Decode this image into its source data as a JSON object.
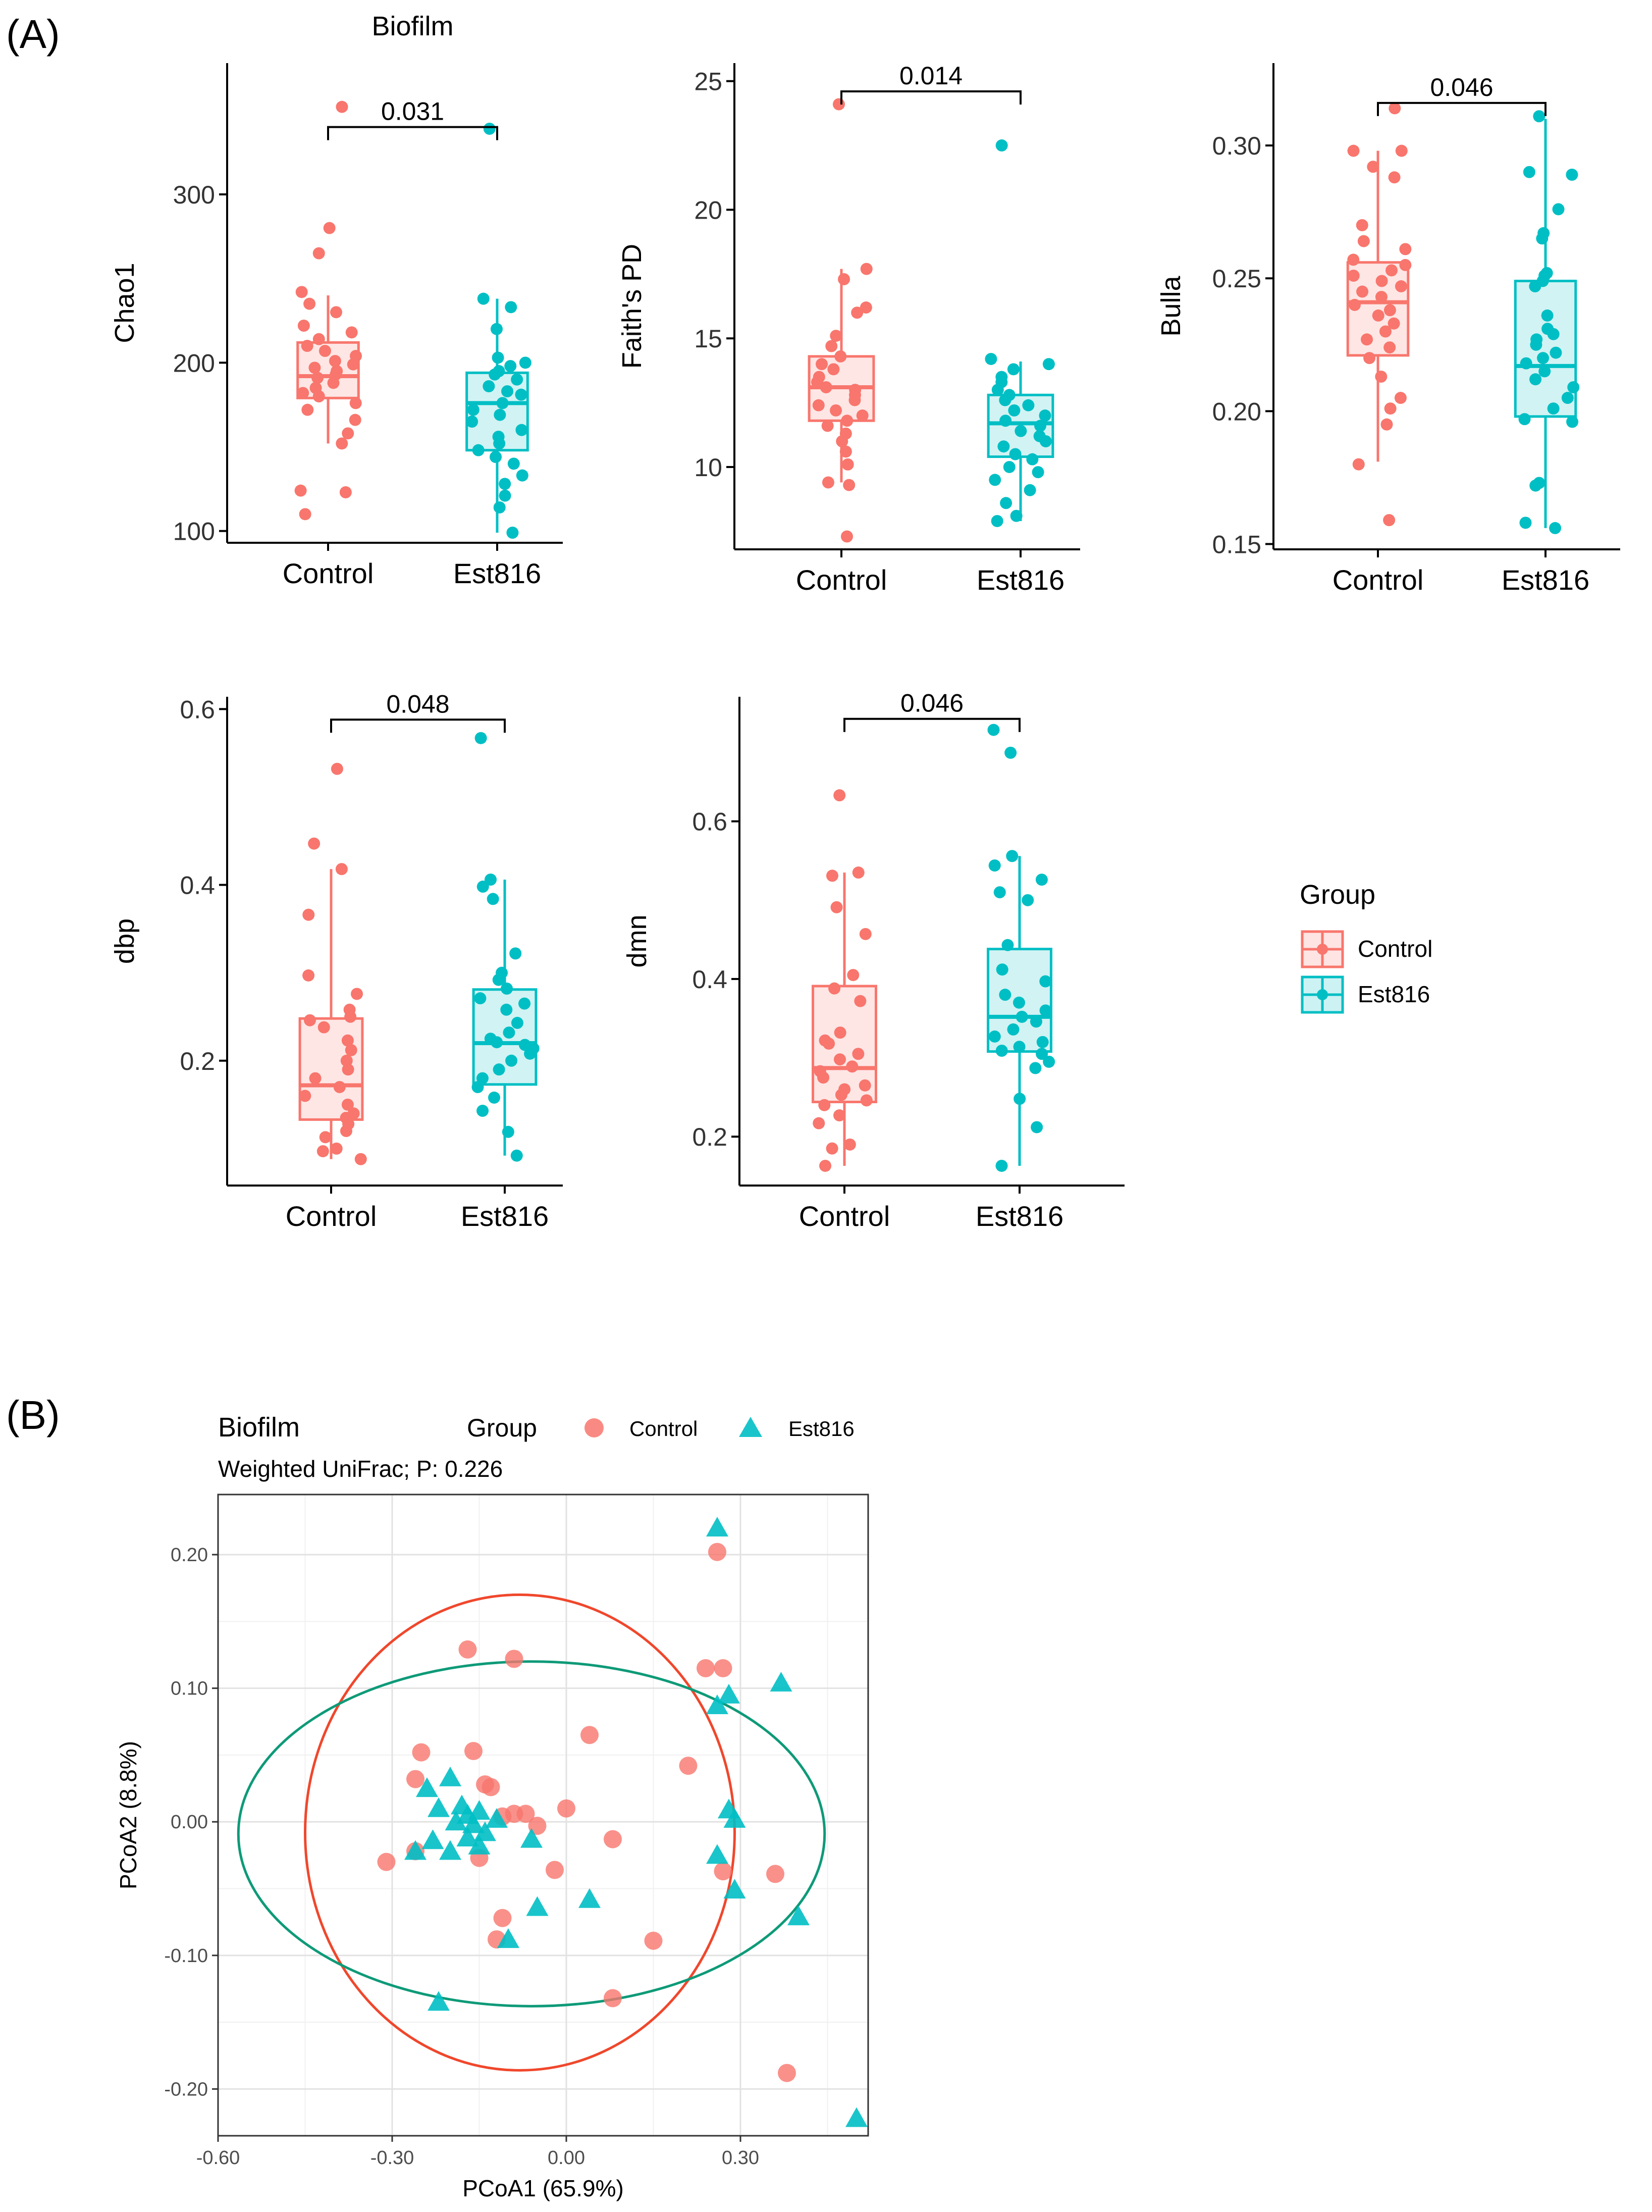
{
  "panel_labels": {
    "a": "(A)",
    "b": "(B)"
  },
  "legend": {
    "title": "Group",
    "entries": [
      {
        "label": "Control",
        "color": "#F8766D"
      },
      {
        "label": "Est816",
        "color": "#00BFC4"
      }
    ]
  },
  "chart_data": [
    {
      "type": "box",
      "title": "Biofilm",
      "ylabel": "Chao1",
      "categories": [
        "Control",
        "Est816"
      ],
      "ylim": [
        93,
        378
      ],
      "yticks": [
        100,
        200,
        300
      ],
      "ytick_labels": [
        "100",
        "200",
        "300"
      ],
      "pvalue": "0.031",
      "bracket_y": 340,
      "series": [
        {
          "name": "Control",
          "q1": 179,
          "median": 192,
          "q3": 212,
          "whisker_low": 152,
          "whisker_high": 240,
          "points": [
            352,
            280,
            265,
            242,
            235,
            230,
            222,
            218,
            214,
            210,
            207,
            204,
            201,
            199,
            197,
            195,
            193,
            191,
            188,
            185,
            182,
            180,
            176,
            172,
            166,
            158,
            152,
            124,
            123,
            110
          ]
        },
        {
          "name": "Est816",
          "q1": 148,
          "median": 176,
          "q3": 194,
          "whisker_low": 99,
          "whisker_high": 238,
          "points": [
            339,
            238,
            233,
            220,
            203,
            200,
            198,
            195,
            193,
            190,
            186,
            183,
            181,
            176,
            172,
            169,
            165,
            160,
            156,
            152,
            148,
            144,
            140,
            133,
            128,
            121,
            114,
            99
          ]
        }
      ]
    },
    {
      "type": "box",
      "title": "",
      "ylabel": "Faith's PD",
      "categories": [
        "Control",
        "Est816"
      ],
      "ylim": [
        6.8,
        25.7
      ],
      "yticks": [
        10,
        15,
        20,
        25
      ],
      "ytick_labels": [
        "10",
        "15",
        "20",
        "25"
      ],
      "pvalue": "0.014",
      "bracket_y": 24.6,
      "series": [
        {
          "name": "Control",
          "q1": 11.8,
          "median": 13.1,
          "q3": 14.3,
          "whisker_low": 9.4,
          "whisker_high": 17.7,
          "points": [
            24.1,
            17.7,
            17.3,
            16.2,
            16.0,
            15.1,
            14.7,
            14.3,
            14.0,
            13.8,
            13.5,
            13.3,
            13.1,
            13.0,
            12.8,
            12.6,
            12.4,
            12.2,
            12.0,
            11.8,
            11.6,
            11.3,
            11.0,
            10.6,
            10.1,
            9.4,
            9.3,
            7.3
          ]
        },
        {
          "name": "Est816",
          "q1": 10.4,
          "median": 11.7,
          "q3": 12.8,
          "whisker_low": 7.9,
          "whisker_high": 14.1,
          "points": [
            22.5,
            14.2,
            14.0,
            13.8,
            13.5,
            13.3,
            13.0,
            12.8,
            12.6,
            12.4,
            12.2,
            12.0,
            11.8,
            11.6,
            11.4,
            11.2,
            11.0,
            10.8,
            10.5,
            10.3,
            10.0,
            9.8,
            9.5,
            9.1,
            8.6,
            8.1,
            7.9
          ]
        }
      ]
    },
    {
      "type": "box",
      "title": "",
      "ylabel": "Bulla",
      "categories": [
        "Control",
        "Est816"
      ],
      "ylim": [
        0.148,
        0.331
      ],
      "yticks": [
        0.15,
        0.2,
        0.25,
        0.3
      ],
      "ytick_labels": [
        "0.15",
        "0.20",
        "0.25",
        "0.30"
      ],
      "pvalue": "0.046",
      "bracket_y": 0.316,
      "series": [
        {
          "name": "Control",
          "q1": 0.221,
          "median": 0.241,
          "q3": 0.256,
          "whisker_low": 0.181,
          "whisker_high": 0.298,
          "points": [
            0.314,
            0.298,
            0.298,
            0.292,
            0.288,
            0.27,
            0.264,
            0.261,
            0.257,
            0.255,
            0.253,
            0.251,
            0.249,
            0.247,
            0.245,
            0.243,
            0.24,
            0.238,
            0.236,
            0.233,
            0.23,
            0.227,
            0.224,
            0.22,
            0.213,
            0.205,
            0.201,
            0.195,
            0.18,
            0.159
          ]
        },
        {
          "name": "Est816",
          "q1": 0.198,
          "median": 0.217,
          "q3": 0.249,
          "whisker_low": 0.156,
          "whisker_high": 0.31,
          "points": [
            0.311,
            0.29,
            0.289,
            0.276,
            0.267,
            0.265,
            0.252,
            0.251,
            0.249,
            0.247,
            0.236,
            0.231,
            0.229,
            0.227,
            0.225,
            0.222,
            0.22,
            0.218,
            0.215,
            0.212,
            0.209,
            0.205,
            0.201,
            0.197,
            0.196,
            0.173,
            0.172,
            0.158,
            0.156
          ]
        }
      ]
    },
    {
      "type": "box",
      "title": "",
      "ylabel": "dbp",
      "categories": [
        "Control",
        "Est816"
      ],
      "ylim": [
        0.058,
        0.614
      ],
      "yticks": [
        0.2,
        0.4,
        0.6
      ],
      "ytick_labels": [
        "0.2",
        "0.4",
        "0.6"
      ],
      "pvalue": "0.048",
      "bracket_y": 0.588,
      "series": [
        {
          "name": "Control",
          "q1": 0.133,
          "median": 0.172,
          "q3": 0.248,
          "whisker_low": 0.088,
          "whisker_high": 0.418,
          "points": [
            0.532,
            0.447,
            0.418,
            0.366,
            0.297,
            0.276,
            0.258,
            0.25,
            0.246,
            0.238,
            0.223,
            0.212,
            0.2,
            0.19,
            0.18,
            0.17,
            0.16,
            0.15,
            0.14,
            0.135,
            0.128,
            0.12,
            0.113,
            0.1,
            0.097,
            0.088
          ]
        },
        {
          "name": "Est816",
          "q1": 0.173,
          "median": 0.22,
          "q3": 0.281,
          "whisker_low": 0.092,
          "whisker_high": 0.406,
          "points": [
            0.567,
            0.406,
            0.398,
            0.384,
            0.322,
            0.3,
            0.292,
            0.282,
            0.271,
            0.265,
            0.258,
            0.243,
            0.232,
            0.225,
            0.221,
            0.218,
            0.214,
            0.208,
            0.2,
            0.19,
            0.18,
            0.17,
            0.158,
            0.143,
            0.119,
            0.092
          ]
        }
      ]
    },
    {
      "type": "box",
      "title": "",
      "ylabel": "dmn",
      "categories": [
        "Control",
        "Est816"
      ],
      "ylim": [
        0.138,
        0.758
      ],
      "yticks": [
        0.2,
        0.4,
        0.6
      ],
      "ytick_labels": [
        "0.2",
        "0.4",
        "0.6"
      ],
      "pvalue": "0.046",
      "bracket_y": 0.73,
      "series": [
        {
          "name": "Control",
          "q1": 0.244,
          "median": 0.287,
          "q3": 0.391,
          "whisker_low": 0.163,
          "whisker_high": 0.535,
          "points": [
            0.633,
            0.535,
            0.531,
            0.491,
            0.457,
            0.405,
            0.388,
            0.372,
            0.332,
            0.322,
            0.318,
            0.305,
            0.298,
            0.289,
            0.283,
            0.275,
            0.265,
            0.26,
            0.253,
            0.246,
            0.24,
            0.227,
            0.217,
            0.19,
            0.185,
            0.163
          ]
        },
        {
          "name": "Est816",
          "q1": 0.308,
          "median": 0.352,
          "q3": 0.438,
          "whisker_low": 0.163,
          "whisker_high": 0.556,
          "points": [
            0.716,
            0.687,
            0.556,
            0.544,
            0.526,
            0.51,
            0.5,
            0.443,
            0.412,
            0.397,
            0.38,
            0.37,
            0.36,
            0.352,
            0.346,
            0.336,
            0.327,
            0.32,
            0.314,
            0.309,
            0.305,
            0.295,
            0.287,
            0.248,
            0.212,
            0.163
          ]
        }
      ]
    },
    {
      "type": "scatter",
      "title": "Biofilm",
      "subtitle": "Weighted UniFrac; P: 0.226",
      "xlabel": "PCoA1 (65.9%)",
      "ylabel": "PCoA2 (8.8%)",
      "xlim": [
        -0.6,
        0.52
      ],
      "ylim": [
        -0.235,
        0.245
      ],
      "xticks": [
        -0.6,
        -0.3,
        0.0,
        0.3
      ],
      "xtick_labels": [
        "-0.60",
        "-0.30",
        "0.00",
        "0.30"
      ],
      "yticks": [
        -0.2,
        -0.1,
        0.0,
        0.1,
        0.2
      ],
      "ytick_labels": [
        "-0.20",
        "-0.10",
        "0.00",
        "0.10",
        "0.20"
      ],
      "grid": true,
      "legend": {
        "title": "Group",
        "position": "top"
      },
      "series": [
        {
          "name": "Control",
          "color": "#F8766D",
          "marker": "circle",
          "ellipse": {
            "cx": -0.08,
            "cy": -0.008,
            "rx": 0.37,
            "ry": 0.178
          },
          "points": [
            [
              0.26,
              0.202
            ],
            [
              0.24,
              0.115
            ],
            [
              0.27,
              0.115
            ],
            [
              -0.17,
              0.129
            ],
            [
              -0.09,
              0.122
            ],
            [
              0.04,
              0.065
            ],
            [
              0.21,
              0.042
            ],
            [
              -0.25,
              0.052
            ],
            [
              -0.16,
              0.053
            ],
            [
              -0.26,
              0.032
            ],
            [
              -0.13,
              0.026
            ],
            [
              -0.14,
              0.028
            ],
            [
              0.0,
              0.01
            ],
            [
              -0.09,
              0.006
            ],
            [
              -0.07,
              0.006
            ],
            [
              -0.11,
              0.004
            ],
            [
              -0.05,
              -0.003
            ],
            [
              -0.31,
              -0.03
            ],
            [
              -0.26,
              -0.022
            ],
            [
              -0.02,
              -0.036
            ],
            [
              0.08,
              -0.013
            ],
            [
              -0.15,
              -0.027
            ],
            [
              0.27,
              -0.037
            ],
            [
              0.36,
              -0.039
            ],
            [
              -0.11,
              -0.072
            ],
            [
              -0.12,
              -0.088
            ],
            [
              0.15,
              -0.089
            ],
            [
              0.08,
              -0.132
            ],
            [
              0.38,
              -0.188
            ]
          ]
        },
        {
          "name": "Est816",
          "color": "#00BFC4",
          "marker": "triangle",
          "ellipse": {
            "cx": -0.06,
            "cy": -0.009,
            "rx": 0.505,
            "ry": 0.129
          },
          "points": [
            [
              0.26,
              0.22
            ],
            [
              0.37,
              0.104
            ],
            [
              0.28,
              0.095
            ],
            [
              0.26,
              0.087
            ],
            [
              -0.2,
              0.033
            ],
            [
              -0.24,
              0.025
            ],
            [
              -0.18,
              0.012
            ],
            [
              -0.17,
              0.005
            ],
            [
              -0.15,
              0.008
            ],
            [
              -0.22,
              0.01
            ],
            [
              -0.19,
              0.0
            ],
            [
              -0.16,
              -0.002
            ],
            [
              -0.12,
              0.002
            ],
            [
              -0.14,
              -0.008
            ],
            [
              -0.17,
              -0.012
            ],
            [
              -0.23,
              -0.014
            ],
            [
              -0.2,
              -0.022
            ],
            [
              -0.26,
              -0.022
            ],
            [
              -0.15,
              -0.018
            ],
            [
              -0.06,
              -0.013
            ],
            [
              0.28,
              0.009
            ],
            [
              0.29,
              0.002
            ],
            [
              0.26,
              -0.025
            ],
            [
              0.29,
              -0.051
            ],
            [
              0.04,
              -0.058
            ],
            [
              -0.05,
              -0.064
            ],
            [
              0.4,
              -0.071
            ],
            [
              -0.1,
              -0.088
            ],
            [
              -0.22,
              -0.135
            ],
            [
              0.5,
              -0.222
            ]
          ]
        }
      ]
    }
  ]
}
